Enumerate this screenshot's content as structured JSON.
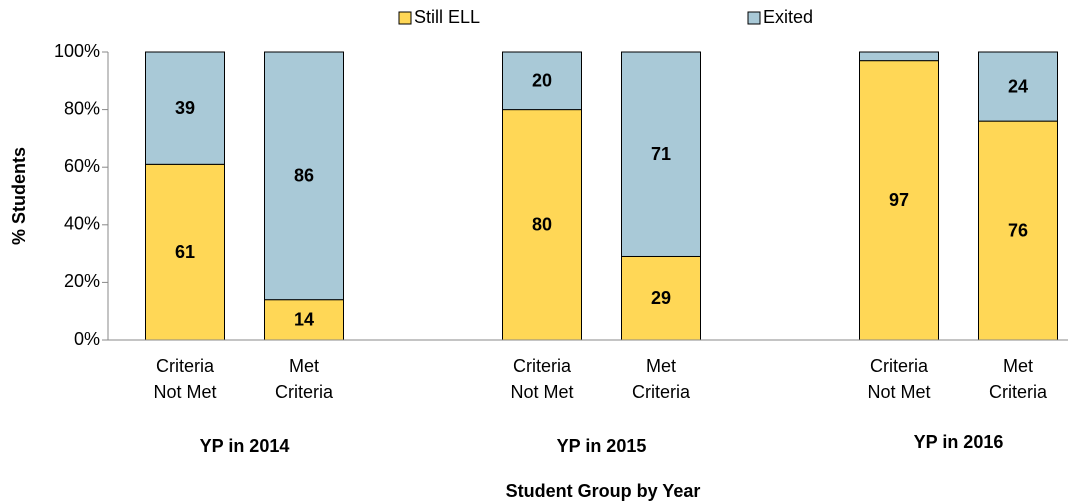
{
  "chart_data": {
    "type": "stacked_bar",
    "x_label": "Student Group by Year",
    "y_label": "% Students",
    "groups": [
      "YP in 2014",
      "YP in 2015",
      "YP in 2016"
    ],
    "categories": [
      [
        "Criteria",
        "Not Met"
      ],
      [
        "Met",
        "Criteria"
      ],
      [
        "Criteria",
        "Not Met"
      ],
      [
        "Met",
        "Criteria"
      ],
      [
        "Criteria",
        "Not Met"
      ],
      [
        "Met",
        "Criteria"
      ]
    ],
    "series": [
      {
        "name": "Still ELL",
        "color": "#ffd756",
        "values": [
          61,
          14,
          80,
          29,
          97,
          76
        ]
      },
      {
        "name": "Exited",
        "color": "#a9c9d7",
        "values": [
          39,
          86,
          20,
          71,
          3,
          24
        ],
        "value_labels": [
          "39",
          "86",
          "20",
          "71",
          null,
          "24"
        ]
      }
    ],
    "ylim": [
      0,
      100
    ],
    "yticks": [
      {
        "value": 0,
        "label": "0%"
      },
      {
        "value": 20,
        "label": "20%"
      },
      {
        "value": 40,
        "label": "40%"
      },
      {
        "value": 60,
        "label": "60%"
      },
      {
        "value": 80,
        "label": "80%"
      },
      {
        "value": 100,
        "label": "100%"
      }
    ],
    "legend": "top"
  }
}
